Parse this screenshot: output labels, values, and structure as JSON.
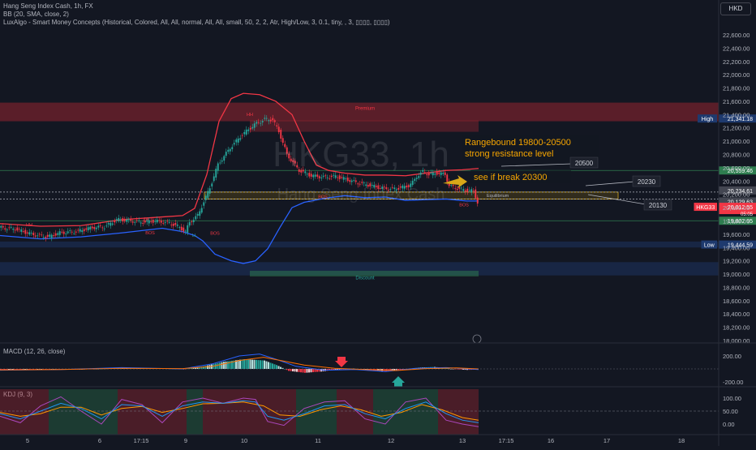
{
  "header": {
    "symbol_line": "Hang Seng Index Cash, 1h, FX",
    "bb_line": "BB (20, SMA, close, 2)",
    "lux_line": "LuxAlgo - Smart Money Concepts (Historical, Colored, All, All, normal, All, All, small, 50, 2, 2, Atr, High/Low, 3, 0.1, tiny, , 3, ▯▯▯▯, ▯▯▯▯)",
    "currency": "HKD"
  },
  "chart_data": [
    {
      "type": "candlestick",
      "title": "Hang Seng Index Cash, 1h, FX",
      "watermark": "HKG33, 1h",
      "watermark_sub": "Hang Seng Index Cash",
      "ylim": [
        18000,
        22700
      ],
      "y_ticks": [
        "22,600.00",
        "22,400.00",
        "22,200.00",
        "22,000.00",
        "21,800.00",
        "21,600.00",
        "21,400.00",
        "21,200.00",
        "21,000.00",
        "20,800.00",
        "20,600.00",
        "20,400.00",
        "20,200.00",
        "20,000.00",
        "19,800.00",
        "19,600.00",
        "19,400.00",
        "19,200.00",
        "19,000.00",
        "18,800.00",
        "18,600.00",
        "18,400.00",
        "18,200.00",
        "18,000.00"
      ],
      "x_ticks": [
        "5",
        "6",
        "17:15",
        "9",
        "10",
        "11",
        "12",
        "13",
        "17:15",
        "16",
        "17",
        "18"
      ],
      "price_path": [
        [
          0,
          19700
        ],
        [
          8,
          19680
        ],
        [
          16,
          19600
        ],
        [
          24,
          19560
        ],
        [
          30,
          19620
        ],
        [
          38,
          19640
        ],
        [
          46,
          19700
        ],
        [
          52,
          19710
        ],
        [
          55,
          19760
        ],
        [
          58,
          19820
        ],
        [
          63,
          19810
        ],
        [
          70,
          19780
        ],
        [
          77,
          19800
        ],
        [
          84,
          19770
        ],
        [
          88,
          19720
        ],
        [
          92,
          19640
        ],
        [
          94,
          19780
        ],
        [
          98,
          19880
        ],
        [
          104,
          20300
        ],
        [
          108,
          20650
        ],
        [
          114,
          20900
        ],
        [
          120,
          21100
        ],
        [
          126,
          21250
        ],
        [
          131,
          21330
        ],
        [
          135,
          21320
        ],
        [
          138,
          21150
        ],
        [
          142,
          20800
        ],
        [
          148,
          20560
        ],
        [
          154,
          20480
        ],
        [
          160,
          20460
        ],
        [
          166,
          20470
        ],
        [
          172,
          20420
        ],
        [
          176,
          20380
        ],
        [
          182,
          20340
        ],
        [
          188,
          20300
        ],
        [
          194,
          20280
        ],
        [
          198,
          20300
        ],
        [
          202,
          20330
        ],
        [
          204,
          20380
        ],
        [
          206,
          20470
        ],
        [
          209,
          20540
        ],
        [
          212,
          20500
        ],
        [
          216,
          20520
        ],
        [
          220,
          20500
        ],
        [
          222,
          20330
        ],
        [
          226,
          20290
        ],
        [
          230,
          20260
        ],
        [
          234,
          20250
        ],
        [
          236,
          20080
        ]
      ],
      "bb_upper": [
        [
          0,
          19760
        ],
        [
          20,
          19720
        ],
        [
          40,
          19730
        ],
        [
          60,
          19820
        ],
        [
          80,
          19860
        ],
        [
          90,
          19880
        ],
        [
          96,
          19990
        ],
        [
          102,
          20500
        ],
        [
          108,
          21300
        ],
        [
          114,
          21640
        ],
        [
          120,
          21720
        ],
        [
          128,
          21700
        ],
        [
          136,
          21600
        ],
        [
          144,
          21400
        ],
        [
          150,
          21000
        ],
        [
          156,
          20640
        ],
        [
          162,
          20560
        ],
        [
          170,
          20520
        ],
        [
          180,
          20490
        ],
        [
          190,
          20490
        ],
        [
          200,
          20480
        ],
        [
          210,
          20520
        ],
        [
          220,
          20560
        ],
        [
          228,
          20570
        ],
        [
          236,
          20590
        ]
      ],
      "bb_lower": [
        [
          0,
          19580
        ],
        [
          20,
          19530
        ],
        [
          40,
          19560
        ],
        [
          60,
          19620
        ],
        [
          80,
          19690
        ],
        [
          90,
          19640
        ],
        [
          96,
          19580
        ],
        [
          100,
          19500
        ],
        [
          106,
          19300
        ],
        [
          114,
          19200
        ],
        [
          120,
          19160
        ],
        [
          126,
          19200
        ],
        [
          132,
          19380
        ],
        [
          138,
          19700
        ],
        [
          144,
          20000
        ],
        [
          150,
          20080
        ],
        [
          160,
          20140
        ],
        [
          170,
          20180
        ],
        [
          180,
          20150
        ],
        [
          190,
          20160
        ],
        [
          200,
          20110
        ],
        [
          210,
          20120
        ],
        [
          220,
          20130
        ],
        [
          230,
          20100
        ],
        [
          236,
          20100
        ]
      ],
      "zones": [
        {
          "label": "Premium",
          "from": 21300,
          "to": 21580,
          "color": "#b22833"
        },
        {
          "label": "Discount",
          "from": 18980,
          "to": 19180,
          "color": "#1e3a6e"
        },
        {
          "label": "",
          "from": 19400,
          "to": 19490,
          "color": "#1e3a6e"
        },
        {
          "label": "Equilibrium",
          "from": 20129.63,
          "to": 20234.61,
          "color": "#8a6d10"
        }
      ],
      "levels": [
        {
          "value": 20559.46,
          "color": "#2e7d4f"
        },
        {
          "value": 20234.61,
          "color": "#b2b5be"
        },
        {
          "value": 20129.63,
          "color": "#b2b5be"
        },
        {
          "value": 19802.95,
          "color": "#2e7d4f"
        }
      ],
      "price_labels": [
        {
          "text": "High",
          "value": "21,341.18",
          "bg": "#1e3a6e"
        },
        {
          "text": "",
          "value": "20,559.46",
          "bg": "#2e7d4f"
        },
        {
          "text": "",
          "value": "20,234.61",
          "bg": "#434651"
        },
        {
          "text": "",
          "value": "20,129.63",
          "bg": "#434651"
        },
        {
          "text": "HKG33",
          "value": "20,012.55",
          "sub": "05:05",
          "bg": "#f23645"
        },
        {
          "text": "",
          "value": "19,802.95",
          "bg": "#2e7d4f"
        },
        {
          "text": "Low",
          "value": "19,444.59",
          "bg": "#1e3a6e"
        }
      ],
      "smc_labels": [
        "HH",
        "LH",
        "HH",
        "LL",
        "BOS",
        "BOS",
        "BOS",
        "BOS",
        "Premium",
        "Equilibrium",
        "Discount"
      ],
      "annotations": {
        "range_title": "Rangebound 19800-20500",
        "range_sub": "strong resistance level",
        "level_20500": "20500",
        "break_text": "see if break 20300",
        "level_20230": "20230",
        "level_20130": "20130"
      }
    },
    {
      "type": "histogram",
      "title": "MACD (12, 26, close)",
      "y_ticks": [
        "200.00",
        "-200.00"
      ],
      "hist": [
        [
          0,
          -20
        ],
        [
          20,
          -15
        ],
        [
          40,
          -10
        ],
        [
          60,
          15
        ],
        [
          80,
          10
        ],
        [
          90,
          -5
        ],
        [
          100,
          40
        ],
        [
          110,
          110
        ],
        [
          120,
          150
        ],
        [
          130,
          130
        ],
        [
          136,
          60
        ],
        [
          142,
          -30
        ],
        [
          150,
          -60
        ],
        [
          158,
          -40
        ],
        [
          166,
          -10
        ],
        [
          174,
          5
        ],
        [
          182,
          -20
        ],
        [
          190,
          -35
        ],
        [
          198,
          -25
        ],
        [
          206,
          20
        ],
        [
          214,
          30
        ],
        [
          222,
          0
        ],
        [
          230,
          -15
        ],
        [
          236,
          -10
        ]
      ],
      "macd": [
        [
          0,
          -20
        ],
        [
          30,
          -10
        ],
        [
          60,
          20
        ],
        [
          90,
          0
        ],
        [
          105,
          80
        ],
        [
          118,
          200
        ],
        [
          128,
          230
        ],
        [
          136,
          150
        ],
        [
          146,
          40
        ],
        [
          160,
          -20
        ],
        [
          175,
          -10
        ],
        [
          190,
          -40
        ],
        [
          205,
          10
        ],
        [
          220,
          20
        ],
        [
          236,
          -10
        ]
      ],
      "signal": [
        [
          0,
          -15
        ],
        [
          30,
          -10
        ],
        [
          60,
          10
        ],
        [
          90,
          5
        ],
        [
          105,
          40
        ],
        [
          118,
          130
        ],
        [
          130,
          180
        ],
        [
          140,
          120
        ],
        [
          150,
          60
        ],
        [
          165,
          10
        ],
        [
          180,
          -10
        ],
        [
          195,
          -25
        ],
        [
          210,
          5
        ],
        [
          225,
          15
        ],
        [
          236,
          0
        ]
      ]
    },
    {
      "type": "line",
      "title": "KDJ (9, 3)",
      "y_ticks": [
        "100.00",
        "50.00",
        "0.00"
      ],
      "k": [
        [
          0,
          40
        ],
        [
          10,
          20
        ],
        [
          20,
          50
        ],
        [
          30,
          80
        ],
        [
          40,
          60
        ],
        [
          50,
          20
        ],
        [
          60,
          75
        ],
        [
          70,
          70
        ],
        [
          80,
          30
        ],
        [
          90,
          70
        ],
        [
          100,
          85
        ],
        [
          110,
          80
        ],
        [
          120,
          90
        ],
        [
          126,
          85
        ],
        [
          132,
          30
        ],
        [
          140,
          15
        ],
        [
          150,
          40
        ],
        [
          160,
          70
        ],
        [
          170,
          75
        ],
        [
          180,
          40
        ],
        [
          190,
          20
        ],
        [
          200,
          60
        ],
        [
          210,
          85
        ],
        [
          220,
          40
        ],
        [
          228,
          15
        ],
        [
          236,
          5
        ]
      ],
      "d": [
        [
          0,
          45
        ],
        [
          10,
          30
        ],
        [
          20,
          40
        ],
        [
          30,
          65
        ],
        [
          40,
          65
        ],
        [
          50,
          35
        ],
        [
          60,
          60
        ],
        [
          70,
          68
        ],
        [
          80,
          45
        ],
        [
          90,
          60
        ],
        [
          100,
          78
        ],
        [
          110,
          80
        ],
        [
          120,
          85
        ],
        [
          130,
          70
        ],
        [
          138,
          35
        ],
        [
          148,
          30
        ],
        [
          158,
          55
        ],
        [
          168,
          70
        ],
        [
          178,
          55
        ],
        [
          188,
          30
        ],
        [
          198,
          45
        ],
        [
          208,
          75
        ],
        [
          218,
          55
        ],
        [
          228,
          25
        ],
        [
          236,
          15
        ]
      ],
      "j": [
        [
          0,
          30
        ],
        [
          10,
          5
        ],
        [
          20,
          70
        ],
        [
          30,
          105
        ],
        [
          40,
          50
        ],
        [
          50,
          0
        ],
        [
          60,
          95
        ],
        [
          70,
          75
        ],
        [
          80,
          5
        ],
        [
          90,
          85
        ],
        [
          100,
          100
        ],
        [
          110,
          80
        ],
        [
          120,
          100
        ],
        [
          126,
          95
        ],
        [
          132,
          10
        ],
        [
          140,
          -5
        ],
        [
          150,
          60
        ],
        [
          160,
          85
        ],
        [
          170,
          90
        ],
        [
          180,
          20
        ],
        [
          190,
          0
        ],
        [
          200,
          85
        ],
        [
          210,
          100
        ],
        [
          220,
          15
        ],
        [
          228,
          0
        ],
        [
          236,
          -10
        ]
      ]
    }
  ]
}
